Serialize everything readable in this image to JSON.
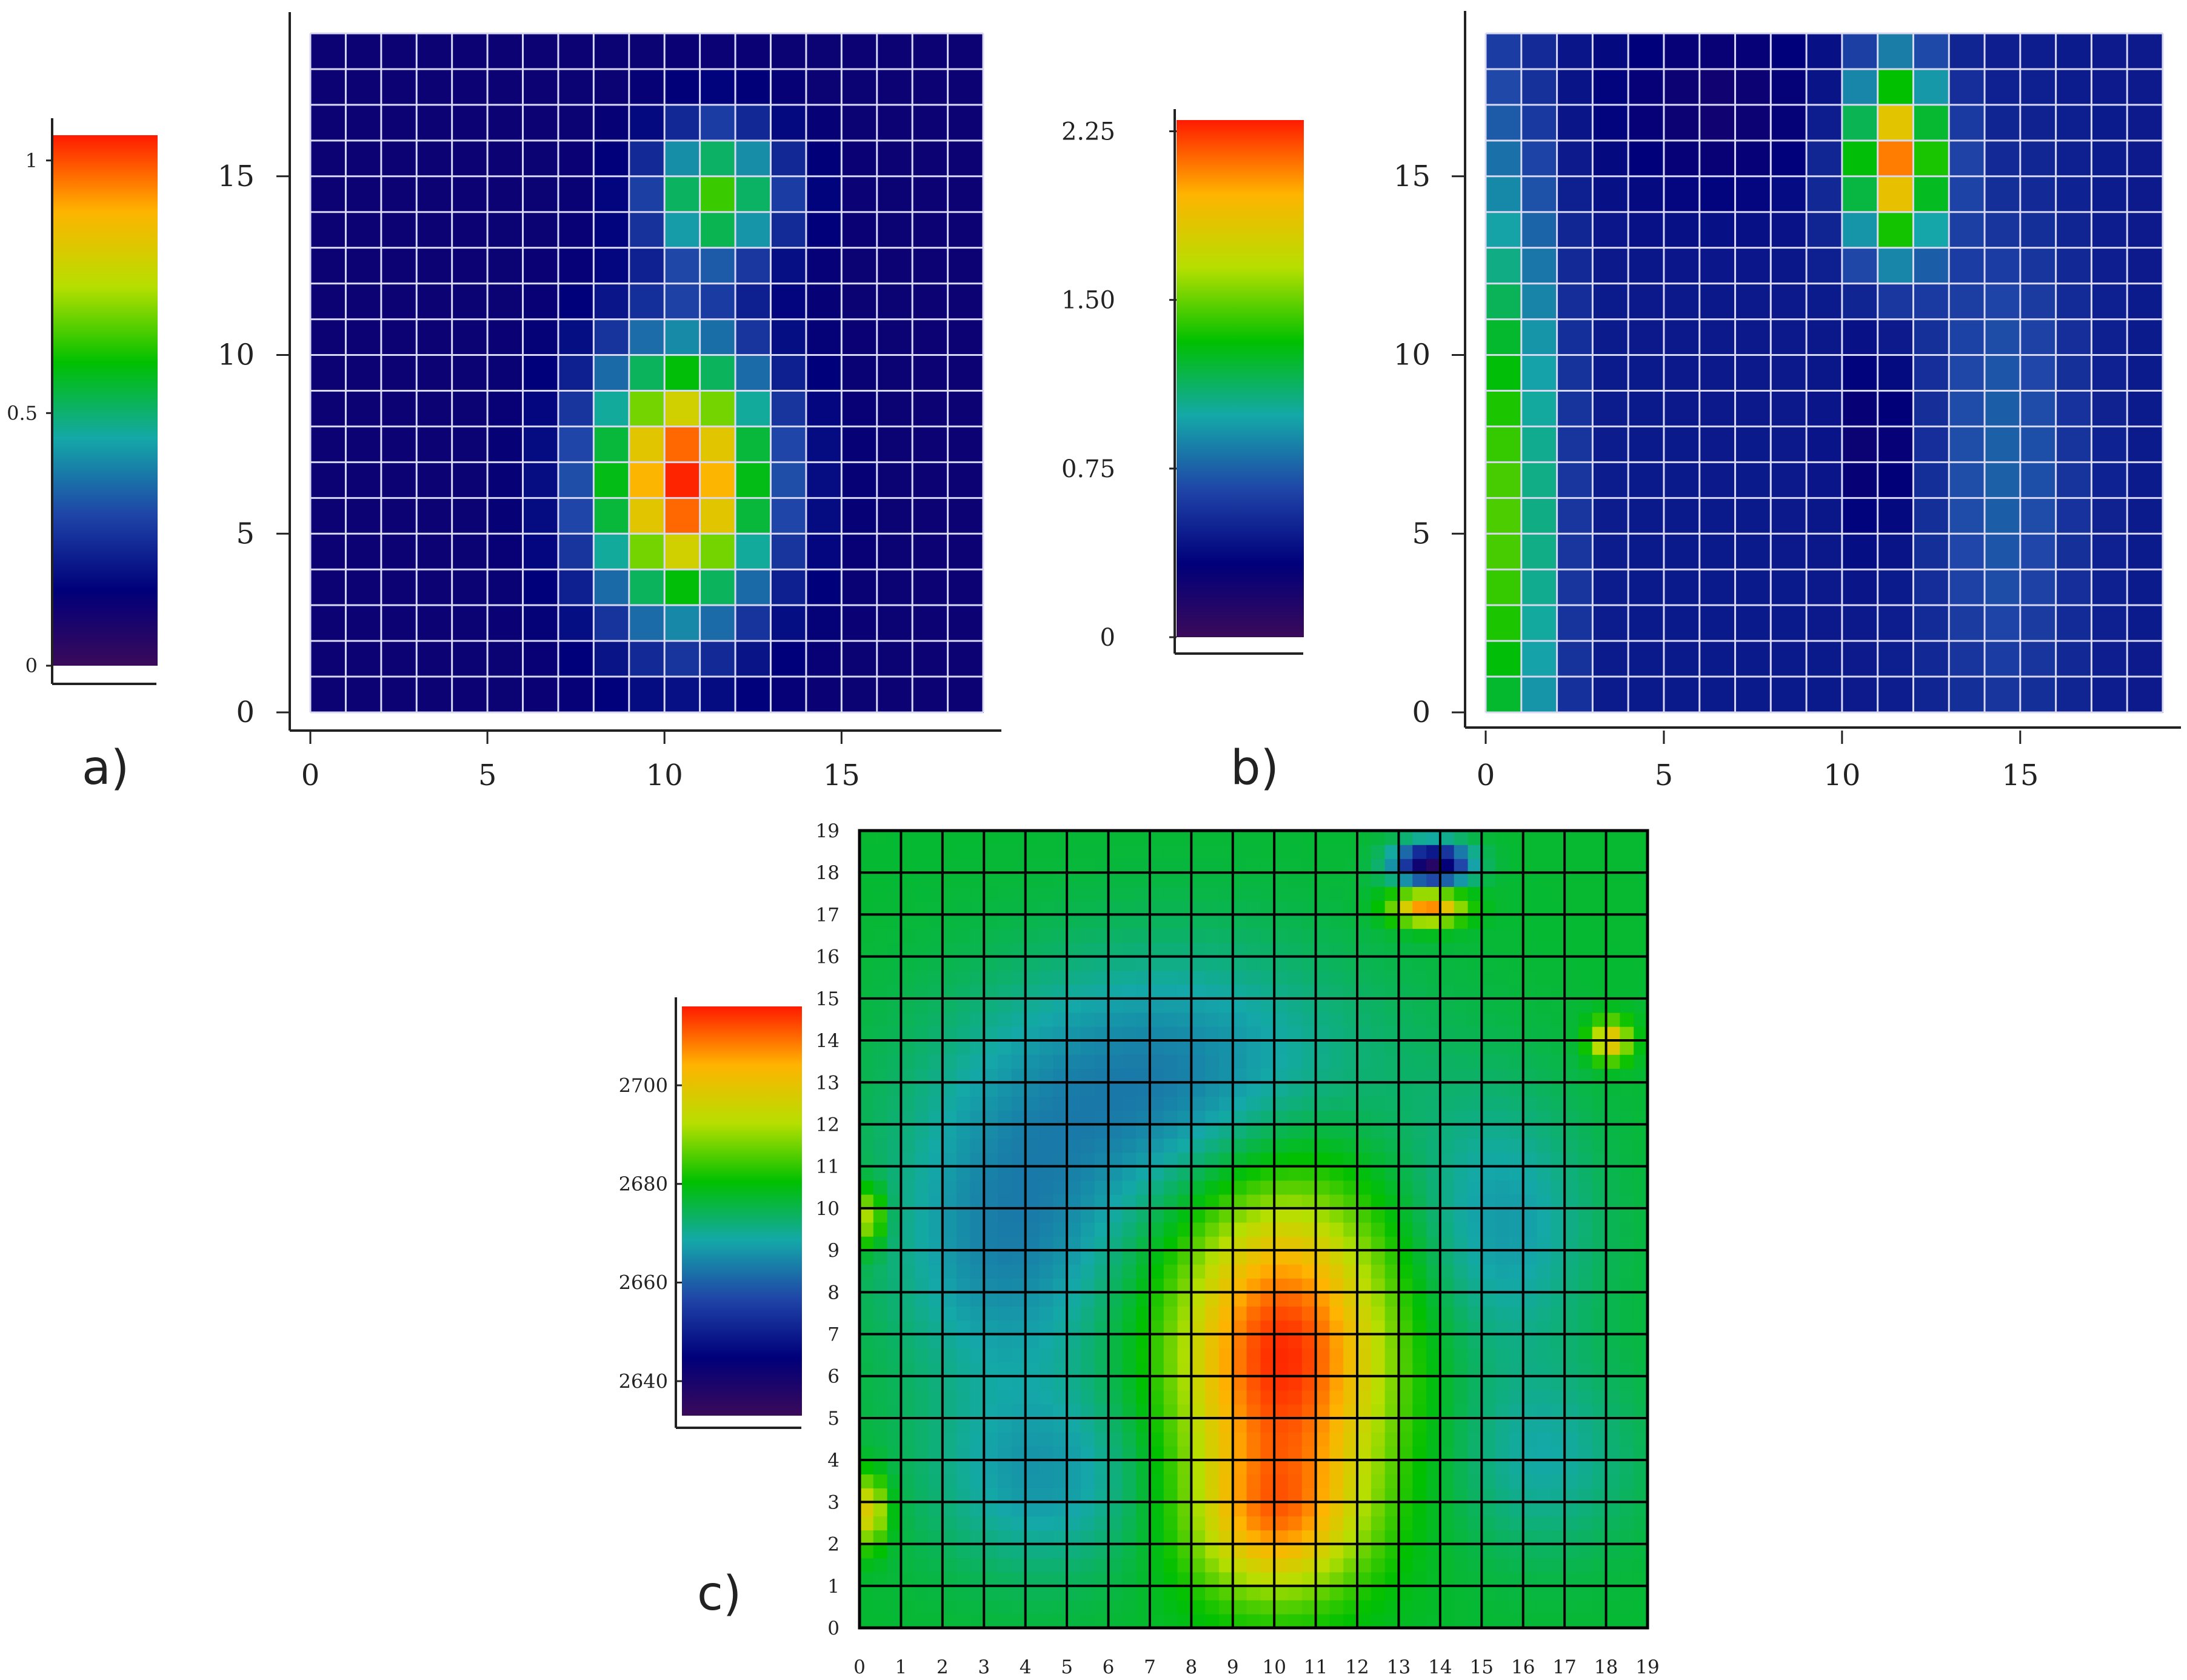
{
  "colors": {
    "scale": [
      "#3a0a5a",
      "#00007a",
      "#1f45a8",
      "#14a8a8",
      "#00c000",
      "#b6df00",
      "#ffb300",
      "#ff1a00"
    ],
    "grid_light": "#d8d8f0",
    "grid_dark": "#000000",
    "axis": "#222222"
  },
  "chart_data": [
    {
      "id": "a",
      "type": "heatmap",
      "panel_label": "a)",
      "x_ticks": [
        "0",
        "5",
        "10",
        "15"
      ],
      "y_ticks": [
        "0",
        "5",
        "10",
        "15"
      ],
      "xlim": [
        0,
        19
      ],
      "ylim": [
        0,
        19
      ],
      "grid": "19x19 cells",
      "colorbar": {
        "min": 0,
        "max": 1.05,
        "ticks": [
          "0",
          "0.5",
          "1"
        ],
        "tick_values": [
          0,
          0.5,
          1
        ]
      },
      "field": {
        "base": 0.12,
        "peaks": [
          {
            "x": 10.5,
            "y": 6.5,
            "amp": 0.92,
            "sx": 1.7,
            "sy": 2.6
          },
          {
            "x": 11.5,
            "y": 14.5,
            "amp": 0.52,
            "sx": 1.3,
            "sy": 1.3
          }
        ]
      }
    },
    {
      "id": "b",
      "type": "heatmap",
      "panel_label": "b)",
      "x_ticks": [
        "0",
        "5",
        "10",
        "15"
      ],
      "y_ticks": [
        "0",
        "5",
        "10",
        "15"
      ],
      "xlim": [
        0,
        19
      ],
      "ylim": [
        0,
        19
      ],
      "grid": "19x19 cells",
      "colorbar": {
        "min": 0,
        "max": 2.3,
        "ticks": [
          "0",
          "0.75",
          "1.50",
          "2.25"
        ],
        "tick_values": [
          0,
          0.75,
          1.5,
          2.25
        ]
      },
      "field": {
        "base": 0.45,
        "peaks": [
          {
            "x": 11.5,
            "y": 15.5,
            "amp": 1.65,
            "sx": 0.9,
            "sy": 1.8
          },
          {
            "x": 0.5,
            "y": 5.5,
            "amp": 1.0,
            "sx": 1.0,
            "sy": 7.0
          },
          {
            "x": 14.5,
            "y": 7.0,
            "amp": 0.3,
            "sx": 1.5,
            "sy": 5.0
          },
          {
            "x": 6.5,
            "y": 17.0,
            "amp": -0.22,
            "sx": 2.5,
            "sy": 2.0
          },
          {
            "x": 11.0,
            "y": 7.5,
            "amp": -0.25,
            "sx": 0.7,
            "sy": 2.0
          }
        ]
      }
    },
    {
      "id": "c",
      "type": "heatmap",
      "panel_label": "c)",
      "x_ticks": [
        "0",
        "1",
        "2",
        "3",
        "4",
        "5",
        "6",
        "7",
        "8",
        "9",
        "10",
        "11",
        "12",
        "13",
        "14",
        "15",
        "16",
        "17",
        "18",
        "19"
      ],
      "y_ticks": [
        "0",
        "1",
        "2",
        "3",
        "4",
        "5",
        "6",
        "7",
        "8",
        "9",
        "10",
        "11",
        "12",
        "13",
        "14",
        "15",
        "16",
        "17",
        "18",
        "19"
      ],
      "xlim": [
        0,
        19
      ],
      "ylim": [
        0,
        19
      ],
      "grid": "19x19 cells, smooth contour fill",
      "colorbar": {
        "min": 2633,
        "max": 2716,
        "ticks": [
          "2640",
          "2660",
          "2680",
          "2700"
        ],
        "tick_values": [
          2640,
          2660,
          2680,
          2700
        ]
      },
      "field": {
        "base": 2677,
        "peaks": [
          {
            "x": 10.2,
            "y": 6.5,
            "amp": 38,
            "sx": 1.8,
            "sy": 2.9
          },
          {
            "x": 10.0,
            "y": 2.5,
            "amp": 18,
            "sx": 1.4,
            "sy": 1.2
          },
          {
            "x": 13.8,
            "y": 18.2,
            "amp": -40,
            "sx": 0.6,
            "sy": 0.35
          },
          {
            "x": 13.7,
            "y": 17.2,
            "amp": 32,
            "sx": 0.6,
            "sy": 0.3
          },
          {
            "x": 18.1,
            "y": 14.0,
            "amp": 25,
            "sx": 0.35,
            "sy": 0.35
          },
          {
            "x": 0.2,
            "y": 2.8,
            "amp": 22,
            "sx": 0.35,
            "sy": 0.6
          },
          {
            "x": 0.2,
            "y": 9.8,
            "amp": 18,
            "sx": 0.3,
            "sy": 0.5
          },
          {
            "x": 7.5,
            "y": 13.0,
            "amp": -14,
            "sx": 3.5,
            "sy": 2.2
          },
          {
            "x": 3.5,
            "y": 9.0,
            "amp": -12,
            "sx": 2.0,
            "sy": 2.5
          },
          {
            "x": 4.5,
            "y": 3.5,
            "amp": -10,
            "sx": 2.0,
            "sy": 1.6
          },
          {
            "x": 15.5,
            "y": 9.5,
            "amp": -10,
            "sx": 1.6,
            "sy": 2.2
          },
          {
            "x": 16.5,
            "y": 4.0,
            "amp": -8,
            "sx": 1.6,
            "sy": 1.6
          }
        ]
      }
    }
  ]
}
